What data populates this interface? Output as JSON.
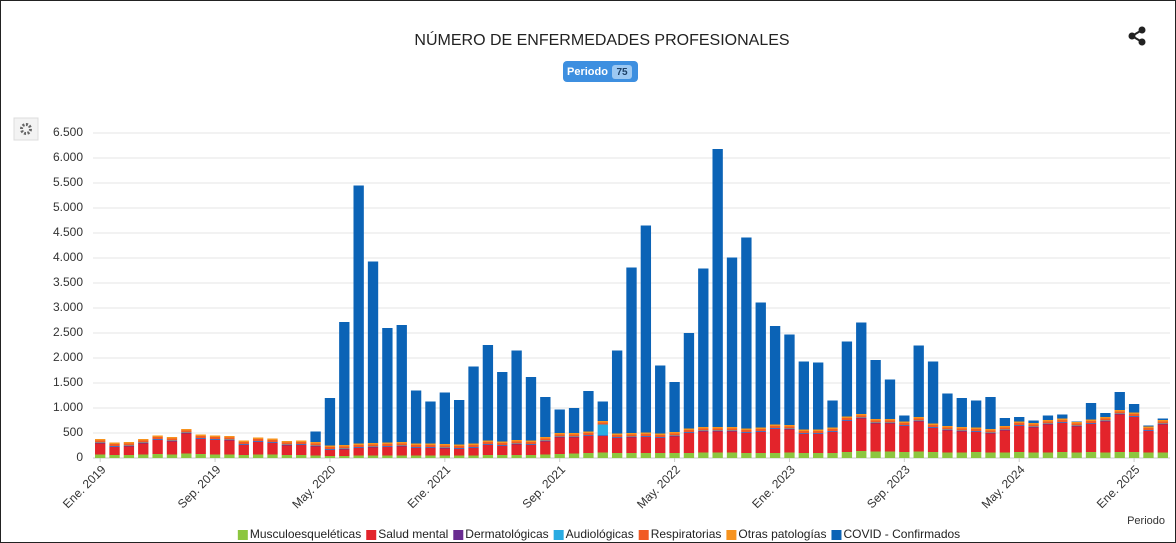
{
  "chart_data": {
    "type": "stacked_bar",
    "title": "NÚMERO DE ENFERMEDADES PROFESIONALES",
    "filter_badge": {
      "label": "Periodo",
      "count": 75
    },
    "x_label": "Periodo",
    "categories": [
      "Ene. 2019",
      null,
      null,
      null,
      null,
      null,
      null,
      null,
      "Sep. 2019",
      null,
      null,
      null,
      null,
      null,
      null,
      null,
      "May. 2020",
      null,
      null,
      null,
      null,
      null,
      null,
      null,
      "Ene. 2021",
      null,
      null,
      null,
      null,
      null,
      null,
      null,
      "Sep. 2021",
      null,
      null,
      null,
      null,
      null,
      null,
      null,
      "May. 2022",
      null,
      null,
      null,
      null,
      null,
      null,
      null,
      "Ene. 2023",
      null,
      null,
      null,
      null,
      null,
      null,
      null,
      "Sep. 2023",
      null,
      null,
      null,
      null,
      null,
      null,
      null,
      "May. 2024",
      null,
      null,
      null,
      null,
      null,
      null,
      null,
      "Ene. 2025",
      null,
      null
    ],
    "ylim": [
      0,
      6500
    ],
    "yticks": [
      0,
      500,
      {
        "value": 1000,
        "label": "1.000"
      },
      {
        "value": 1500,
        "label": "1.500"
      },
      {
        "value": 2000,
        "label": "2.000"
      },
      {
        "value": 2500,
        "label": "2.500"
      },
      {
        "value": 3000,
        "label": "3.000"
      },
      {
        "value": 3500,
        "label": "3.500"
      },
      {
        "value": 4000,
        "label": "4.000"
      },
      {
        "value": 4500,
        "label": "4.500"
      },
      {
        "value": 5000,
        "label": "5.000"
      },
      {
        "value": 5500,
        "label": "5.500"
      },
      {
        "value": 6000,
        "label": "6.000"
      },
      {
        "value": 6500,
        "label": "6.500"
      }
    ],
    "grid": true,
    "legend": "bottom",
    "series": [
      {
        "name": "Musculoesqueléticas",
        "color": "#8cc63f",
        "values": [
          70,
          60,
          60,
          70,
          80,
          70,
          90,
          80,
          70,
          70,
          60,
          70,
          70,
          60,
          60,
          50,
          40,
          40,
          50,
          50,
          50,
          50,
          50,
          50,
          50,
          50,
          50,
          60,
          60,
          60,
          60,
          70,
          80,
          90,
          100,
          110,
          100,
          100,
          100,
          100,
          100,
          100,
          110,
          110,
          110,
          100,
          100,
          100,
          110,
          100,
          100,
          100,
          120,
          140,
          130,
          130,
          120,
          130,
          120,
          110,
          110,
          120,
          110,
          110,
          120,
          110,
          110,
          120,
          110,
          120,
          110,
          120,
          120,
          110,
          110
        ]
      },
      {
        "name": "Salud mental",
        "color": "#e3242b",
        "values": [
          220,
          160,
          170,
          220,
          280,
          260,
          400,
          300,
          290,
          280,
          200,
          250,
          230,
          190,
          200,
          180,
          120,
          130,
          150,
          160,
          170,
          180,
          150,
          150,
          140,
          130,
          150,
          200,
          180,
          210,
          200,
          260,
          330,
          320,
          340,
          330,
          300,
          310,
          320,
          300,
          330,
          400,
          420,
          420,
          420,
          400,
          420,
          480,
          460,
          380,
          380,
          420,
          620,
          650,
          560,
          560,
          520,
          600,
          480,
          440,
          420,
          400,
          380,
          440,
          520,
          500,
          560,
          580,
          520,
          560,
          620,
          750,
          700,
          430,
          560
        ]
      },
      {
        "name": "Dermatológicas",
        "color": "#6a2c91",
        "values": [
          10,
          10,
          10,
          10,
          10,
          10,
          10,
          10,
          10,
          10,
          10,
          10,
          10,
          10,
          10,
          10,
          10,
          10,
          10,
          10,
          10,
          10,
          10,
          10,
          10,
          10,
          10,
          10,
          10,
          10,
          10,
          10,
          10,
          10,
          10,
          10,
          10,
          10,
          10,
          10,
          10,
          10,
          10,
          10,
          10,
          10,
          10,
          10,
          10,
          10,
          10,
          10,
          10,
          10,
          10,
          10,
          10,
          10,
          10,
          10,
          10,
          10,
          10,
          10,
          10,
          10,
          10,
          10,
          10,
          10,
          10,
          10,
          10,
          10,
          10
        ]
      },
      {
        "name": "Audiológicas",
        "color": "#29abe2",
        "values": [
          10,
          10,
          10,
          10,
          10,
          10,
          10,
          10,
          10,
          10,
          10,
          10,
          10,
          10,
          10,
          10,
          10,
          10,
          10,
          10,
          10,
          10,
          10,
          10,
          10,
          10,
          10,
          10,
          10,
          10,
          10,
          10,
          10,
          10,
          10,
          220,
          10,
          10,
          10,
          10,
          10,
          10,
          10,
          10,
          10,
          10,
          10,
          10,
          10,
          10,
          10,
          10,
          10,
          10,
          10,
          10,
          10,
          10,
          10,
          10,
          10,
          10,
          10,
          10,
          10,
          10,
          10,
          10,
          10,
          10,
          10,
          10,
          10,
          10,
          10
        ]
      },
      {
        "name": "Respiratorias",
        "color": "#f15a24",
        "values": [
          40,
          40,
          40,
          40,
          40,
          40,
          40,
          40,
          40,
          40,
          40,
          40,
          40,
          40,
          40,
          40,
          40,
          40,
          40,
          40,
          40,
          40,
          40,
          40,
          40,
          40,
          40,
          40,
          40,
          40,
          40,
          40,
          40,
          40,
          40,
          40,
          40,
          40,
          40,
          40,
          40,
          40,
          40,
          40,
          40,
          40,
          40,
          40,
          40,
          40,
          40,
          40,
          40,
          40,
          40,
          40,
          40,
          40,
          40,
          40,
          40,
          40,
          40,
          40,
          40,
          40,
          40,
          40,
          40,
          40,
          40,
          40,
          40,
          40,
          40
        ]
      },
      {
        "name": "Otras patologías",
        "color": "#f7931e",
        "values": [
          30,
          30,
          30,
          30,
          30,
          30,
          30,
          30,
          30,
          30,
          30,
          30,
          30,
          30,
          30,
          30,
          30,
          30,
          30,
          30,
          30,
          30,
          30,
          30,
          30,
          30,
          30,
          30,
          30,
          30,
          30,
          30,
          30,
          30,
          30,
          30,
          30,
          30,
          30,
          30,
          30,
          30,
          30,
          30,
          30,
          30,
          30,
          30,
          30,
          30,
          30,
          30,
          30,
          30,
          30,
          30,
          30,
          30,
          30,
          30,
          30,
          30,
          30,
          30,
          30,
          30,
          30,
          30,
          30,
          30,
          30,
          30,
          30,
          30,
          30
        ]
      },
      {
        "name": "COVID - Confirmados",
        "color": "#0b63b6",
        "values": [
          0,
          0,
          0,
          0,
          0,
          0,
          0,
          0,
          0,
          0,
          0,
          0,
          0,
          0,
          0,
          210,
          950,
          2460,
          5160,
          3630,
          2290,
          2340,
          1060,
          840,
          1030,
          890,
          1540,
          1910,
          1390,
          1790,
          1270,
          800,
          470,
          500,
          810,
          390,
          1660,
          3310,
          4140,
          1360,
          1000,
          1910,
          3170,
          5560,
          3390,
          3820,
          2500,
          1970,
          1810,
          1360,
          1340,
          540,
          1500,
          1830,
          1180,
          790,
          120,
          1430,
          1240,
          650,
          580,
          540,
          640,
          160,
          90,
          50,
          90,
          80,
          10,
          330,
          80,
          360,
          170,
          20,
          30
        ]
      }
    ]
  }
}
